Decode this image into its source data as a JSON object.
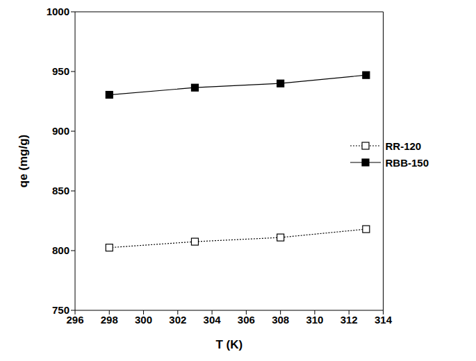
{
  "chart_data": {
    "type": "line",
    "x_label": "T (K)",
    "y_label": "qe (mg/g)",
    "x": [
      298,
      303,
      308,
      313
    ],
    "series": [
      {
        "name": "RR-120",
        "color": "#000000",
        "marker": "open-square",
        "line_style": "dotted",
        "values": [
          802.5,
          807.5,
          811,
          818
        ]
      },
      {
        "name": "RBB-150",
        "color": "#000000",
        "marker": "filled-square",
        "line_style": "solid",
        "values": [
          930.5,
          936.5,
          940,
          947
        ]
      }
    ],
    "xlim": [
      296,
      314
    ],
    "xticks": [
      296,
      298,
      300,
      302,
      304,
      306,
      308,
      310,
      312,
      314
    ],
    "ylim": [
      750,
      1000
    ],
    "yticks": [
      750,
      800,
      850,
      900,
      950,
      1000
    ],
    "grid": false,
    "legend": "right"
  }
}
